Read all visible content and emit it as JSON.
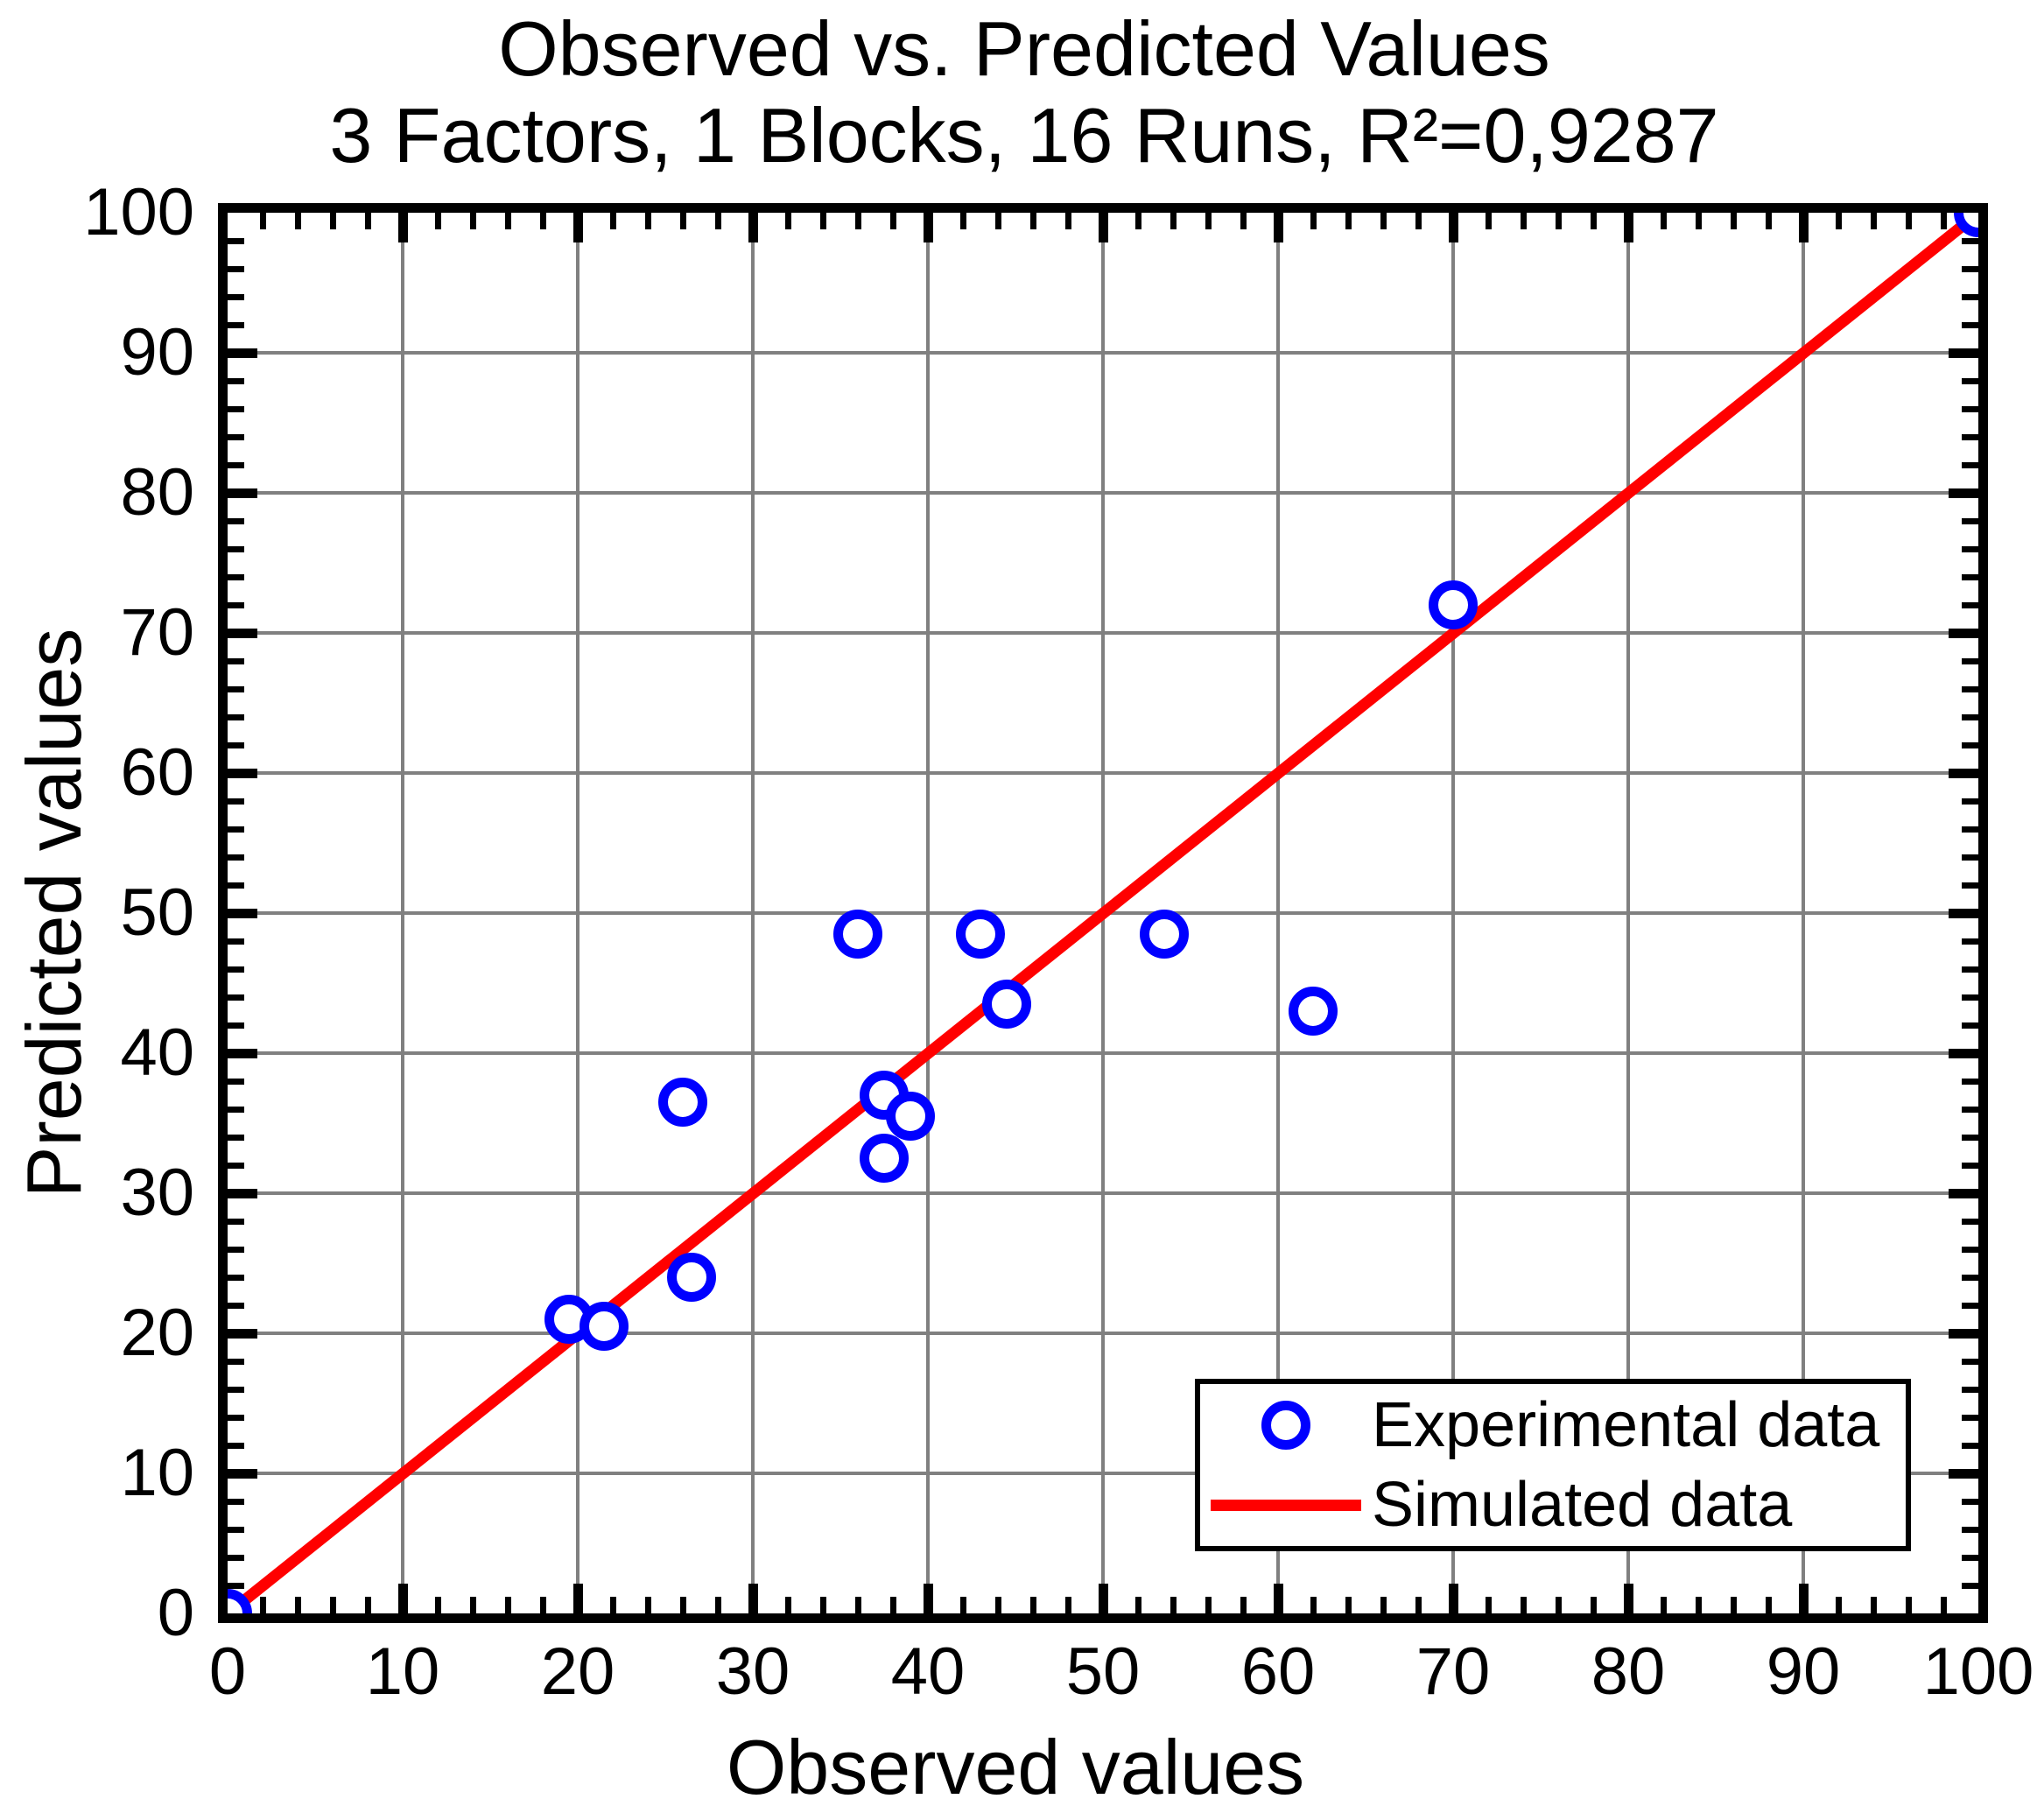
{
  "figure": {
    "title_line1": "Observed vs. Predicted Values",
    "title_line2": "3 Factors, 1 Blocks, 16 Runs, R²=0,9287"
  },
  "chart_data": {
    "type": "scatter",
    "title": "Observed vs. Predicted Values",
    "subtitle": "3 Factors, 1 Blocks, 16 Runs, R²=0,9287",
    "xlabel": "Observed values",
    "ylabel": "Predicted values",
    "xlim": [
      0,
      100
    ],
    "ylim": [
      0,
      100
    ],
    "x_ticks": [
      0,
      10,
      20,
      30,
      40,
      50,
      60,
      70,
      80,
      90,
      100
    ],
    "y_ticks": [
      0,
      10,
      20,
      30,
      40,
      50,
      60,
      70,
      80,
      90,
      100
    ],
    "minor_tick_step": 2,
    "grid": true,
    "legend_position": "lower right",
    "series": [
      {
        "name": "Experimental data",
        "kind": "scatter",
        "marker": "open-circle",
        "color": "#0000ff",
        "points": [
          [
            0,
            0
          ],
          [
            19.5,
            21
          ],
          [
            21.5,
            20.5
          ],
          [
            26.5,
            24
          ],
          [
            26,
            36.5
          ],
          [
            36,
            48.5
          ],
          [
            37.5,
            37
          ],
          [
            37.5,
            32.5
          ],
          [
            39,
            35.5
          ],
          [
            43,
            48.5
          ],
          [
            44.5,
            43.5
          ],
          [
            53.5,
            48.5
          ],
          [
            62,
            43
          ],
          [
            70,
            72
          ],
          [
            100,
            100
          ]
        ]
      },
      {
        "name": "Simulated data",
        "kind": "line",
        "color": "#ff0000",
        "points": [
          [
            0,
            0
          ],
          [
            100,
            100
          ]
        ]
      }
    ]
  },
  "legend": {
    "experimental_label": "Experimental data",
    "simulated_label": "Simulated data"
  },
  "colors": {
    "marker_blue": "#0000ff",
    "line_red": "#ff0000",
    "grid_gray": "#808080",
    "frame_black": "#000000",
    "background": "#ffffff"
  }
}
